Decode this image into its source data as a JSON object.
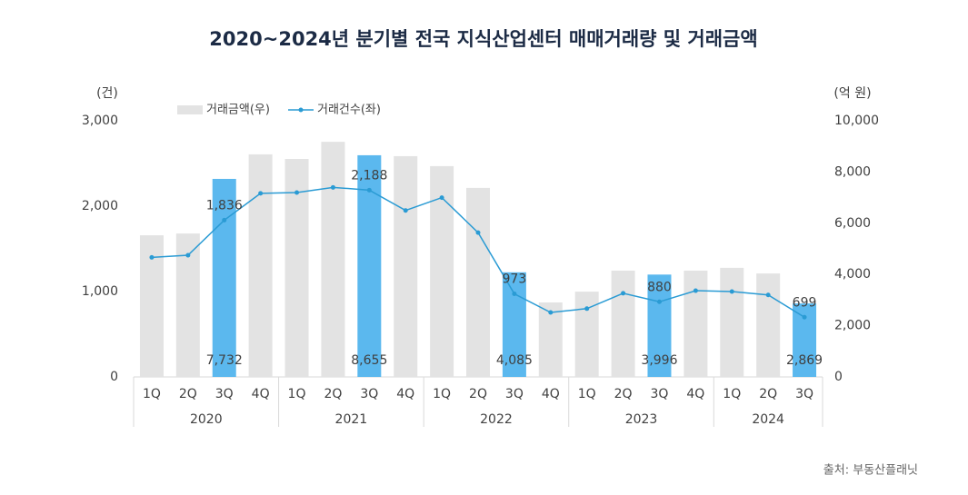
{
  "chart_data": {
    "type": "bar-line",
    "title": "2020~2024년 분기별 전국 지식산업센터 매매거래량 및 거래금액",
    "y_unit": "(건)",
    "y2_unit": "(억 원)",
    "source": "출처: 부동산플래닛",
    "categories": [
      "1Q",
      "2Q",
      "3Q",
      "4Q",
      "1Q",
      "2Q",
      "3Q",
      "4Q",
      "1Q",
      "2Q",
      "3Q",
      "4Q",
      "1Q",
      "2Q",
      "3Q",
      "4Q",
      "1Q",
      "2Q",
      "3Q"
    ],
    "groups": [
      {
        "label": "2020",
        "count": 4
      },
      {
        "label": "2021",
        "count": 4
      },
      {
        "label": "2022",
        "count": 4
      },
      {
        "label": "2023",
        "count": 4
      },
      {
        "label": "2024",
        "count": 3
      }
    ],
    "ylim": [
      0,
      3000
    ],
    "yticks": [
      0,
      {
        "value": 1000,
        "label": "1,000"
      },
      {
        "value": 2000,
        "label": "2,000"
      },
      {
        "value": 3000,
        "label": "3,000"
      }
    ],
    "y2lim": [
      0,
      10000
    ],
    "y2ticks": [
      0,
      {
        "value": 2000,
        "label": "2,000"
      },
      {
        "value": 4000,
        "label": "4,000"
      },
      {
        "value": 6000,
        "label": "6,000"
      },
      {
        "value": 8000,
        "label": "8,000"
      },
      {
        "value": 10000,
        "label": "10,000"
      }
    ],
    "legend": "top-left",
    "series": [
      {
        "name": "거래금액(우)",
        "type": "bar",
        "axis": "y2",
        "color": "#e3e3e3",
        "highlight_color": "#5bb8ee",
        "highlight": [
          false,
          false,
          true,
          false,
          false,
          false,
          true,
          false,
          false,
          false,
          true,
          false,
          false,
          false,
          true,
          false,
          false,
          false,
          true
        ],
        "values": [
          5530,
          5600,
          7732,
          8690,
          8510,
          9180,
          8655,
          8620,
          8230,
          7380,
          4085,
          2910,
          3330,
          4150,
          3996,
          4150,
          4260,
          4040,
          2869
        ],
        "value_labels": [
          null,
          null,
          "7,732",
          null,
          null,
          null,
          "8,655",
          null,
          null,
          null,
          "4,085",
          null,
          null,
          null,
          "3,996",
          null,
          null,
          null,
          "2,869"
        ]
      },
      {
        "name": "거래건수(좌)",
        "type": "line",
        "color": "#2a9bd4",
        "values": [
          1400,
          1425,
          1836,
          2150,
          2160,
          2220,
          2188,
          1950,
          2100,
          1690,
          973,
          755,
          800,
          980,
          880,
          1010,
          1000,
          960,
          699
        ],
        "value_labels": [
          null,
          null,
          "1,836",
          null,
          null,
          null,
          "2,188",
          null,
          null,
          null,
          "973",
          null,
          null,
          null,
          "880",
          null,
          null,
          null,
          "699"
        ]
      }
    ]
  }
}
